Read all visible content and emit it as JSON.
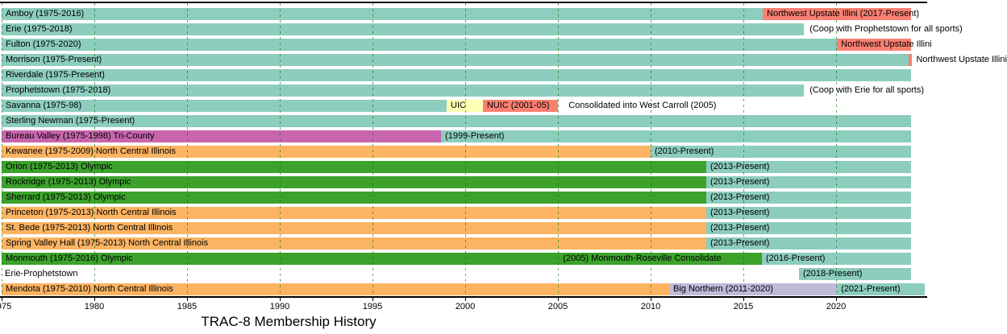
{
  "title": "TRAC-8 Membership History",
  "colors": {
    "trac_teal": "#8CCDBE",
    "nuic_salmon": "#FB8072",
    "uic_yellow": "#FFFFB3",
    "tri_county_magenta": "#C965AE",
    "north_central_orange": "#FDB462",
    "olympic_green": "#3CA22C",
    "big_northern_lavender": "#BEBADA",
    "gridline_green": "#0A7D0A",
    "axis_black": "#000000"
  },
  "chart_data": {
    "type": "bar",
    "subtype": "gantt-timeline",
    "title": "TRAC-8 Membership History",
    "x_axis": {
      "unit": "year",
      "min": 1975,
      "max": 2025,
      "ticks": [
        1975,
        1980,
        1985,
        1990,
        1995,
        2000,
        2005,
        2010,
        2015,
        2020
      ],
      "tick_labels": [
        "1975",
        "1980",
        "1985",
        "1990",
        "1995",
        "2000",
        "2005",
        "2010",
        "2015",
        "2020"
      ],
      "grid": true
    },
    "legend_position": "none",
    "rows": [
      {
        "name": "Amboy",
        "segments": [
          {
            "start": 1975,
            "end": 2016.05,
            "color": "trac_teal",
            "label": "Amboy (1975-2016)"
          },
          {
            "start": 2016.05,
            "end": 2024.05,
            "color": "nuic_salmon",
            "label": "Northwest Upstate Illini (2017-Present)"
          }
        ],
        "texts": []
      },
      {
        "name": "Erie",
        "segments": [
          {
            "start": 1975,
            "end": 2018.25,
            "color": "trac_teal",
            "label": "Erie (1975-2018)"
          }
        ],
        "texts": [
          {
            "at_year": 2018.4,
            "text": "(Coop with Prophetstown for all sports)"
          }
        ]
      },
      {
        "name": "Fulton",
        "segments": [
          {
            "start": 1975,
            "end": 2020.05,
            "color": "trac_teal",
            "label": "Fulton (1975-2020)"
          },
          {
            "start": 2020.05,
            "end": 2024.05,
            "color": "nuic_salmon",
            "label": "Northwest Upstate Illini"
          }
        ],
        "texts": []
      },
      {
        "name": "Morrison",
        "segments": [
          {
            "start": 1975,
            "end": 2023.9,
            "color": "trac_teal",
            "label": "Morrison (1975-Present)"
          },
          {
            "start": 2023.9,
            "end": 2024.1,
            "color": "nuic_salmon",
            "label": ""
          }
        ],
        "texts": [
          {
            "at_year": 2024.15,
            "text": "Northwest Upstate Illini"
          }
        ]
      },
      {
        "name": "Riverdale",
        "segments": [
          {
            "start": 1975,
            "end": 2024.05,
            "color": "trac_teal",
            "label": "Riverdale (1975-Present)"
          }
        ],
        "texts": []
      },
      {
        "name": "Prophetstown",
        "segments": [
          {
            "start": 1975,
            "end": 2018.25,
            "color": "trac_teal",
            "label": "Prophetstown (1975-2018)"
          }
        ],
        "texts": [
          {
            "at_year": 2018.4,
            "text": "(Coop with Erie for all sports)"
          }
        ]
      },
      {
        "name": "Savanna",
        "segments": [
          {
            "start": 1975,
            "end": 1999,
            "color": "trac_teal",
            "label": "Savanna (1975-98)"
          },
          {
            "start": 1999,
            "end": 2000.95,
            "color": "uic_yellow",
            "label": "UIC"
          },
          {
            "start": 2000.95,
            "end": 2005,
            "color": "nuic_salmon",
            "label": "NUIC (2001-05)"
          }
        ],
        "texts": [
          {
            "at_year": 2005.4,
            "text": "Consolidated into West Carroll (2005)"
          }
        ]
      },
      {
        "name": "Sterling Newman",
        "segments": [
          {
            "start": 1975,
            "end": 2024.05,
            "color": "trac_teal",
            "label": "Sterling Newman (1975-Present)"
          }
        ],
        "texts": []
      },
      {
        "name": "Bureau Valley",
        "segments": [
          {
            "start": 1975,
            "end": 1998.7,
            "color": "tri_county_magenta",
            "label": "Bureau Valley (1975-1998) Tri-County"
          },
          {
            "start": 1998.7,
            "end": 2024.05,
            "color": "trac_teal",
            "label": "(1999-Present)"
          }
        ],
        "texts": []
      },
      {
        "name": "Kewanee",
        "segments": [
          {
            "start": 1975,
            "end": 2010,
            "color": "north_central_orange",
            "label": "Kewanee (1975-2009) North Central Illinois"
          },
          {
            "start": 2010,
            "end": 2024.05,
            "color": "trac_teal",
            "label": "(2010-Present)"
          }
        ],
        "texts": []
      },
      {
        "name": "Orion",
        "segments": [
          {
            "start": 1975,
            "end": 2013,
            "color": "olympic_green",
            "label": "Orion (1975-2013) Olympic"
          },
          {
            "start": 2013,
            "end": 2024.05,
            "color": "trac_teal",
            "label": "(2013-Present)"
          }
        ],
        "texts": []
      },
      {
        "name": "Rockridge",
        "segments": [
          {
            "start": 1975,
            "end": 2013,
            "color": "olympic_green",
            "label": "Rockridge (1975-2013) Olympic"
          },
          {
            "start": 2013,
            "end": 2024.05,
            "color": "trac_teal",
            "label": "(2013-Present)"
          }
        ],
        "texts": []
      },
      {
        "name": "Sherrard",
        "segments": [
          {
            "start": 1975,
            "end": 2013,
            "color": "olympic_green",
            "label": "Sherrard (1975-2013) Olympic"
          },
          {
            "start": 2013,
            "end": 2024.05,
            "color": "trac_teal",
            "label": "(2013-Present)"
          }
        ],
        "texts": []
      },
      {
        "name": "Princeton",
        "segments": [
          {
            "start": 1975,
            "end": 2013,
            "color": "north_central_orange",
            "label": "Princeton (1975-2013) North Central Illinois"
          },
          {
            "start": 2013,
            "end": 2024.05,
            "color": "trac_teal",
            "label": "(2013-Present)"
          }
        ],
        "texts": []
      },
      {
        "name": "St. Bede",
        "segments": [
          {
            "start": 1975,
            "end": 2013,
            "color": "north_central_orange",
            "label": "St. Bede (1975-2013) North Central Illinois"
          },
          {
            "start": 2013,
            "end": 2024.05,
            "color": "trac_teal",
            "label": "(2013-Present)"
          }
        ],
        "texts": []
      },
      {
        "name": "Spring Valley Hall",
        "segments": [
          {
            "start": 1975,
            "end": 2013,
            "color": "north_central_orange",
            "label": "Spring Valley Hall (1975-2013) North Central Illinois"
          },
          {
            "start": 2013,
            "end": 2024.05,
            "color": "trac_teal",
            "label": "(2013-Present)"
          }
        ],
        "texts": []
      },
      {
        "name": "Monmouth",
        "segments": [
          {
            "start": 1975,
            "end": 2016,
            "color": "olympic_green",
            "label": "Monmouth (1975-2016) Olympic"
          },
          {
            "start": 2016,
            "end": 2024.05,
            "color": "trac_teal",
            "label": "(2016-Present)"
          }
        ],
        "texts": [
          {
            "at_year": 2005.1,
            "text": "(2005) Monmouth-Roseville Consolidate"
          }
        ]
      },
      {
        "name": "Erie-Prophetstown",
        "segments": [
          {
            "start": 2018,
            "end": 2024.05,
            "color": "trac_teal",
            "label": "(2018-Present)"
          }
        ],
        "texts": [
          {
            "at_year": 1975,
            "text": "Erie-Prophetstown"
          }
        ]
      },
      {
        "name": "Mendota",
        "segments": [
          {
            "start": 1975,
            "end": 2011,
            "color": "north_central_orange",
            "label": "Mendota (1975-2010) North Central Illinois"
          },
          {
            "start": 2011,
            "end": 2020.05,
            "color": "big_northern_lavender",
            "label": "Big Northern (2011-2020)"
          },
          {
            "start": 2020.05,
            "end": 2024.8,
            "color": "trac_teal",
            "label": "(2021-Present)"
          }
        ],
        "texts": []
      }
    ]
  }
}
